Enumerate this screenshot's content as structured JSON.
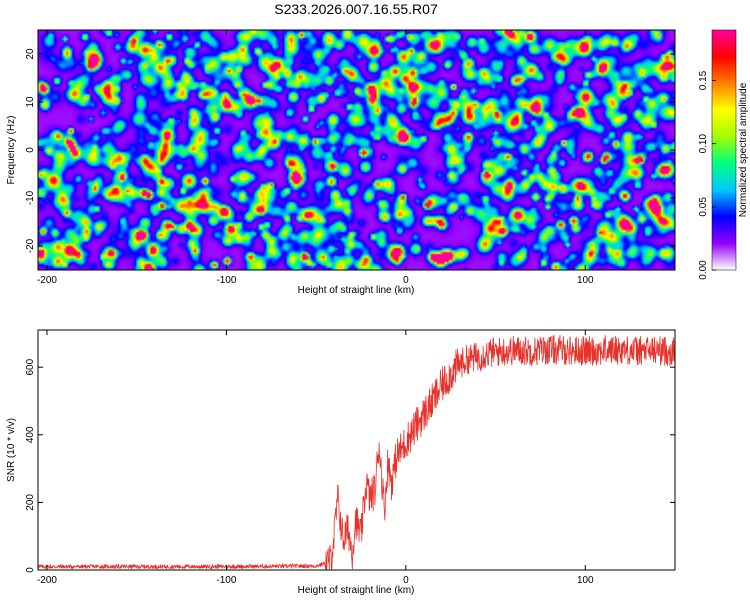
{
  "title": "S233.2026.007.16.55.R07",
  "chart_data": [
    {
      "type": "heatmap",
      "xlabel": "Height of straight line (km)",
      "ylabel": "Frequency (Hz)",
      "xlim": [
        -205,
        150
      ],
      "ylim": [
        -25,
        25
      ],
      "xticks": [
        -200,
        -100,
        0,
        100
      ],
      "yticks": [
        -20,
        -10,
        0,
        10,
        20
      ],
      "values_description": "normalized spectral amplitude noise field, mostly 0.00-0.08 with scattered peaks up to ~0.17",
      "colorbar": {
        "label": "Normalized spectral amplitude",
        "range": [
          0.0,
          0.19
        ],
        "ticks": [
          "0.00",
          "0.05",
          "0.10",
          "0.15"
        ],
        "colors": [
          "#ffffff",
          "#9400ff",
          "#0000ff",
          "#00c8ff",
          "#00ff80",
          "#a0ff00",
          "#ffff00",
          "#ff8000",
          "#ff0000",
          "#ff00a0"
        ]
      }
    },
    {
      "type": "line",
      "xlabel": "Height of straight line (km)",
      "ylabel": "SNR (10 * v/v)",
      "xlim": [
        -205,
        150
      ],
      "ylim": [
        0,
        710
      ],
      "xticks": [
        -200,
        -100,
        0,
        100
      ],
      "yticks": [
        0,
        200,
        400,
        600
      ],
      "color": "#e8312a",
      "series": [
        {
          "name": "SNR",
          "x": [
            -205,
            -150,
            -100,
            -50,
            -42,
            -40,
            -38,
            -35,
            -32,
            -30,
            -28,
            -25,
            -22,
            -20,
            -17,
            -15,
            -12,
            -10,
            -8,
            -5,
            -2,
            0,
            5,
            10,
            15,
            20,
            25,
            30,
            35,
            40,
            45,
            50,
            60,
            70,
            80,
            90,
            100,
            110,
            120,
            130,
            140,
            150
          ],
          "values": [
            10,
            10,
            10,
            12,
            25,
            100,
            210,
            90,
            120,
            50,
            150,
            100,
            260,
            210,
            240,
            380,
            180,
            320,
            260,
            340,
            360,
            380,
            420,
            460,
            500,
            545,
            580,
            610,
            625,
            630,
            640,
            645,
            650,
            648,
            652,
            650,
            648,
            650,
            652,
            648,
            650,
            645
          ]
        }
      ]
    }
  ]
}
